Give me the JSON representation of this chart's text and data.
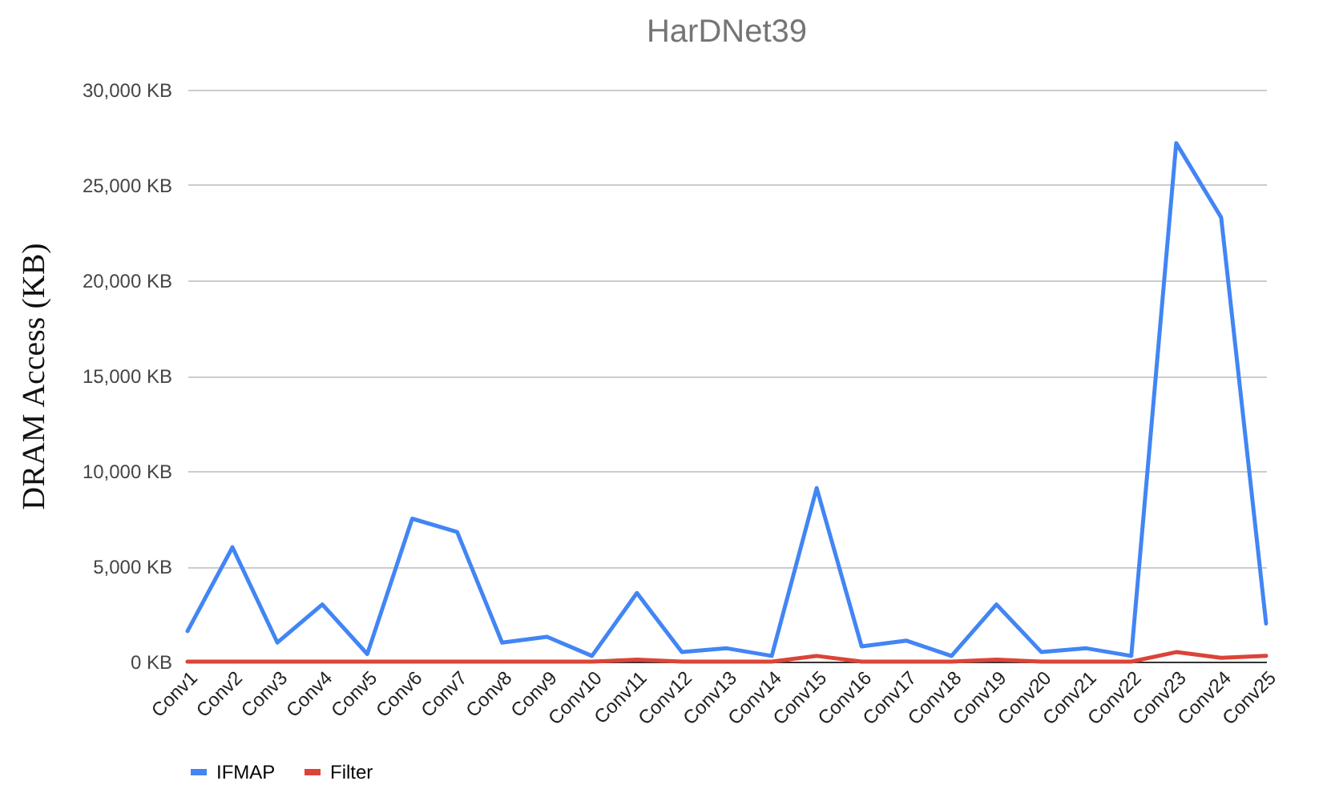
{
  "chart_data": {
    "type": "line",
    "title": "HarDNet39",
    "ylabel": "DRAM Access (KB)",
    "categories": [
      "Conv1",
      "Conv2",
      "Conv3",
      "Conv4",
      "Conv5",
      "Conv6",
      "Conv7",
      "Conv8",
      "Conv9",
      "Conv10",
      "Conv11",
      "Conv12",
      "Conv13",
      "Conv14",
      "Conv15",
      "Conv16",
      "Conv17",
      "Conv18",
      "Conv19",
      "Conv20",
      "Conv21",
      "Conv22",
      "Conv23",
      "Conv24",
      "Conv25"
    ],
    "series": [
      {
        "name": "IFMAP",
        "color": "#4285f4",
        "values": [
          1600,
          6000,
          1000,
          3000,
          400,
          7500,
          6800,
          1000,
          1300,
          300,
          3600,
          500,
          700,
          300,
          9100,
          800,
          1100,
          300,
          3000,
          500,
          700,
          300,
          27200,
          23300,
          2000
        ]
      },
      {
        "name": "Filter",
        "color": "#db4437",
        "values": [
          0,
          0,
          0,
          0,
          0,
          0,
          0,
          0,
          0,
          0,
          100,
          0,
          0,
          0,
          300,
          0,
          0,
          0,
          100,
          0,
          0,
          0,
          500,
          200,
          300
        ]
      }
    ],
    "ylim": [
      0,
      30000
    ],
    "yticks": [
      {
        "value": 0,
        "label": "0 KB"
      },
      {
        "value": 5000,
        "label": "5,000 KB"
      },
      {
        "value": 10000,
        "label": "10,000 KB"
      },
      {
        "value": 15000,
        "label": "15,000 KB"
      },
      {
        "value": 20000,
        "label": "20,000 KB"
      },
      {
        "value": 25000,
        "label": "25,000 KB"
      },
      {
        "value": 30000,
        "label": "30,000 KB"
      }
    ],
    "grid": "y",
    "legend": "bottom",
    "marker": "none",
    "line_style": "solid"
  }
}
